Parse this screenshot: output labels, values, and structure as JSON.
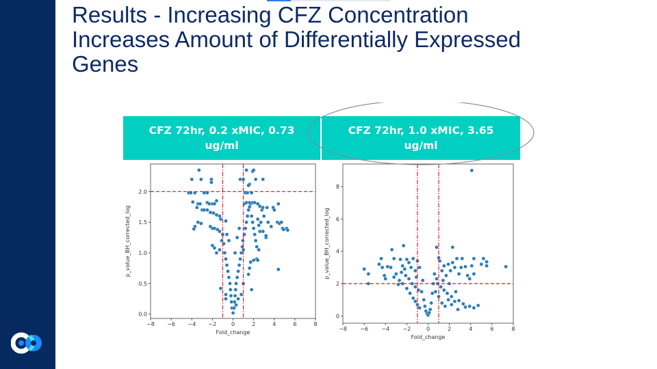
{
  "slide": {
    "title_lines": [
      "Results - Increasing CFZ Concentration",
      "Increases Amount of Differentially Expressed",
      "Genes"
    ],
    "colors": {
      "sidebar": "#062a5f",
      "title": "#0d2a63",
      "header_fill": "#00cfc1",
      "point": "#1f77b4",
      "threshold": "#e8262b"
    },
    "logo": "company-logo-icon"
  },
  "panels": [
    {
      "header_line1": "CFZ 72hr, 0.2 xMIC, 0.73",
      "header_line2": "ug/ml"
    },
    {
      "header_line1": "CFZ 72hr, 1.0 xMIC, 3.65",
      "header_line2": "ug/ml"
    }
  ],
  "chart_data": [
    {
      "type": "scatter",
      "title": "CFZ 72hr, 0.2 xMIC, 0.73 ug/ml",
      "xlabel": "Fold_change",
      "ylabel": "p_value_BH_corrected_log",
      "xlim": [
        -8,
        8
      ],
      "ylim": [
        -0.07,
        2.45
      ],
      "xticks": [
        -8,
        -6,
        -4,
        -2,
        0,
        2,
        4,
        6,
        8
      ],
      "yticks": [
        0.0,
        0.5,
        1.0,
        1.5,
        2.0
      ],
      "ytick_labels": [
        "0.0",
        "0.5",
        "1.0",
        "1.5",
        "2.0"
      ],
      "thresholds": {
        "vertical": [
          -1,
          1
        ],
        "horizontal": 2.0
      },
      "grid": false,
      "points": [
        [
          -3.3,
          2.35
        ],
        [
          -4.0,
          2.2
        ],
        [
          -3.1,
          2.2
        ],
        [
          -2.1,
          2.2
        ],
        [
          -2.1,
          2.15
        ],
        [
          1.3,
          2.35
        ],
        [
          1.9,
          2.33
        ],
        [
          2.0,
          2.35
        ],
        [
          0.7,
          2.2
        ],
        [
          1.0,
          2.2
        ],
        [
          1.6,
          2.12
        ],
        [
          1.5,
          2.1
        ],
        [
          2.2,
          2.2
        ],
        [
          2.9,
          2.2
        ],
        [
          -4.3,
          1.98
        ],
        [
          -4.1,
          1.98
        ],
        [
          -3.7,
          1.98
        ],
        [
          -2.8,
          1.98
        ],
        [
          -2.5,
          1.98
        ],
        [
          -1.6,
          1.85
        ],
        [
          1.2,
          1.98
        ],
        [
          1.4,
          1.98
        ],
        [
          1.8,
          1.98
        ],
        [
          -3.9,
          1.83
        ],
        [
          -3.4,
          1.8
        ],
        [
          -3.2,
          1.8
        ],
        [
          -2.5,
          1.82
        ],
        [
          -2.3,
          1.8
        ],
        [
          -2.0,
          1.8
        ],
        [
          -1.8,
          1.8
        ],
        [
          -3.5,
          1.74
        ],
        [
          -3.0,
          1.7
        ],
        [
          -2.8,
          1.7
        ],
        [
          -2.5,
          1.7
        ],
        [
          -2.2,
          1.66
        ],
        [
          -1.9,
          1.65
        ],
        [
          -1.6,
          1.62
        ],
        [
          -1.3,
          1.6
        ],
        [
          -1.2,
          1.55
        ],
        [
          -3.4,
          1.5
        ],
        [
          -3.7,
          1.43
        ],
        [
          -3.8,
          1.39
        ],
        [
          -3.1,
          1.48
        ],
        [
          -2.2,
          1.43
        ],
        [
          -2.0,
          1.4
        ],
        [
          -1.8,
          1.4
        ],
        [
          -1.5,
          1.38
        ],
        [
          -1.3,
          1.35
        ],
        [
          -1.0,
          1.3
        ],
        [
          -0.7,
          1.52
        ],
        [
          -0.6,
          1.3
        ],
        [
          -2.0,
          1.12
        ],
        [
          -1.8,
          1.08
        ],
        [
          -1.6,
          1.0
        ],
        [
          -1.3,
          1.05
        ],
        [
          -1.1,
          1.2
        ],
        [
          -0.9,
          1.15
        ],
        [
          -0.8,
          1.0
        ],
        [
          -0.7,
          0.9
        ],
        [
          -0.6,
          0.8
        ],
        [
          -0.5,
          0.7
        ],
        [
          -0.4,
          0.6
        ],
        [
          -0.3,
          0.5
        ],
        [
          -0.25,
          0.4
        ],
        [
          -0.2,
          0.3
        ],
        [
          -0.15,
          0.2
        ],
        [
          -0.1,
          0.1
        ],
        [
          0.0,
          0.02
        ],
        [
          0.1,
          0.1
        ],
        [
          0.15,
          0.2
        ],
        [
          0.2,
          0.3
        ],
        [
          0.25,
          0.4
        ],
        [
          -1.2,
          0.42
        ],
        [
          -0.7,
          0.32
        ],
        [
          -0.7,
          0.25
        ],
        [
          0.3,
          0.5
        ],
        [
          0.4,
          0.6
        ],
        [
          0.5,
          0.7
        ],
        [
          0.6,
          0.8
        ],
        [
          0.7,
          0.9
        ],
        [
          0.8,
          1.0
        ],
        [
          0.9,
          1.1
        ],
        [
          0.95,
          1.2
        ],
        [
          0.8,
          0.32
        ],
        [
          0.5,
          0.25
        ],
        [
          0.3,
          0.15
        ],
        [
          1.1,
          1.3
        ],
        [
          1.2,
          1.4
        ],
        [
          1.3,
          1.5
        ],
        [
          1.4,
          1.6
        ],
        [
          1.5,
          1.7
        ],
        [
          1.6,
          1.75
        ],
        [
          1.7,
          1.8
        ],
        [
          1.8,
          1.6
        ],
        [
          1.9,
          1.5
        ],
        [
          2.0,
          1.4
        ],
        [
          2.1,
          1.3
        ],
        [
          2.2,
          1.2
        ],
        [
          2.3,
          1.1
        ],
        [
          2.4,
          1.55
        ],
        [
          2.5,
          1.45
        ],
        [
          2.6,
          1.35
        ],
        [
          1.1,
          1.8
        ],
        [
          1.3,
          1.82
        ],
        [
          1.6,
          1.82
        ],
        [
          1.9,
          1.82
        ],
        [
          2.1,
          1.82
        ],
        [
          2.4,
          1.8
        ],
        [
          2.6,
          1.76
        ],
        [
          2.8,
          1.7
        ],
        [
          3.0,
          1.6
        ],
        [
          3.3,
          1.74
        ],
        [
          2.9,
          1.74
        ],
        [
          2.7,
          1.5
        ],
        [
          2.9,
          1.35
        ],
        [
          3.2,
          1.25
        ],
        [
          3.4,
          1.5
        ],
        [
          3.7,
          1.43
        ],
        [
          3.9,
          1.74
        ],
        [
          4.0,
          1.7
        ],
        [
          4.4,
          1.8
        ],
        [
          4.3,
          1.5
        ],
        [
          4.5,
          1.48
        ],
        [
          4.7,
          1.5
        ],
        [
          4.8,
          1.4
        ],
        [
          4.9,
          1.38
        ],
        [
          5.2,
          1.4
        ],
        [
          5.3,
          1.37
        ],
        [
          3.2,
          1.28
        ],
        [
          2.5,
          1.05
        ],
        [
          2.3,
          0.9
        ],
        [
          2.0,
          0.88
        ],
        [
          1.7,
          0.85
        ],
        [
          1.6,
          0.75
        ],
        [
          1.5,
          0.65
        ],
        [
          2.4,
          0.88
        ],
        [
          4.4,
          0.73
        ],
        [
          1.8,
          0.4
        ],
        [
          1.0,
          0.5
        ],
        [
          -0.4,
          1.2
        ],
        [
          0.2,
          1.0
        ],
        [
          0.4,
          1.25
        ],
        [
          0.6,
          1.4
        ],
        [
          1.0,
          1.05
        ]
      ]
    },
    {
      "type": "scatter",
      "title": "CFZ 72hr, 1.0 xMIC, 3.65 ug/ml",
      "xlabel": "Fold_change",
      "ylabel": "p_value_BH_corrected_log",
      "xlim": [
        -8,
        8
      ],
      "ylim": [
        -0.45,
        9.4
      ],
      "xticks": [
        -8,
        -6,
        -4,
        -2,
        0,
        2,
        4,
        6,
        8
      ],
      "yticks": [
        0,
        2,
        4,
        6,
        8
      ],
      "ytick_labels": [
        "0",
        "2",
        "4",
        "6",
        "8"
      ],
      "thresholds": {
        "vertical": [
          -1,
          1
        ],
        "horizontal": 2.0
      },
      "grid": false,
      "annotation": "ellipse highlighting 1.0 xMIC panel header",
      "points": [
        [
          4.1,
          9.0
        ],
        [
          -2.3,
          4.35
        ],
        [
          -3.4,
          4.1
        ],
        [
          0.8,
          4.25
        ],
        [
          2.3,
          4.25
        ],
        [
          -6.0,
          2.9
        ],
        [
          -5.6,
          2.6
        ],
        [
          -5.6,
          2.0
        ],
        [
          -4.6,
          3.2
        ],
        [
          -4.4,
          3.55
        ],
        [
          -4.3,
          3.0
        ],
        [
          -4.1,
          2.5
        ],
        [
          -4.0,
          2.3
        ],
        [
          -3.8,
          3.05
        ],
        [
          -3.5,
          3.0
        ],
        [
          -3.2,
          3.55
        ],
        [
          -3.0,
          2.6
        ],
        [
          -2.8,
          1.95
        ],
        [
          -2.6,
          3.5
        ],
        [
          -2.4,
          3.1
        ],
        [
          -2.2,
          2.9
        ],
        [
          -2.0,
          3.5
        ],
        [
          -1.8,
          3.3
        ],
        [
          -1.6,
          3.0
        ],
        [
          -1.4,
          3.55
        ],
        [
          -1.2,
          2.8
        ],
        [
          -1.0,
          3.4
        ],
        [
          -0.8,
          3.0
        ],
        [
          -3.2,
          2.4
        ],
        [
          -2.7,
          2.2
        ],
        [
          -2.4,
          2.0
        ],
        [
          -2.0,
          1.7
        ],
        [
          -1.7,
          1.4
        ],
        [
          -1.4,
          1.1
        ],
        [
          -1.2,
          0.9
        ],
        [
          -1.0,
          0.7
        ],
        [
          -0.8,
          0.5
        ],
        [
          -0.6,
          1.5
        ],
        [
          -0.5,
          2.2
        ],
        [
          -0.4,
          1.0
        ],
        [
          -0.3,
          0.6
        ],
        [
          -0.2,
          0.3
        ],
        [
          -0.1,
          0.15
        ],
        [
          0.0,
          0.05
        ],
        [
          0.1,
          0.2
        ],
        [
          0.2,
          0.4
        ],
        [
          0.3,
          0.8
        ],
        [
          0.4,
          1.4
        ],
        [
          0.5,
          2.0
        ],
        [
          0.6,
          2.6
        ],
        [
          0.8,
          2.3
        ],
        [
          1.0,
          3.6
        ],
        [
          1.1,
          3.4
        ],
        [
          1.3,
          2.8
        ],
        [
          1.5,
          3.1
        ],
        [
          1.7,
          2.5
        ],
        [
          1.9,
          3.2
        ],
        [
          2.1,
          2.8
        ],
        [
          2.3,
          3.3
        ],
        [
          2.5,
          3.0
        ],
        [
          2.7,
          3.55
        ],
        [
          2.9,
          2.6
        ],
        [
          3.1,
          3.0
        ],
        [
          3.2,
          3.55
        ],
        [
          3.5,
          3.05
        ],
        [
          3.7,
          2.5
        ],
        [
          3.9,
          2.3
        ],
        [
          4.1,
          3.1
        ],
        [
          4.3,
          3.55
        ],
        [
          4.3,
          2.6
        ],
        [
          5.0,
          3.2
        ],
        [
          5.2,
          3.55
        ],
        [
          5.5,
          3.35
        ],
        [
          5.5,
          3.1
        ],
        [
          7.3,
          3.05
        ],
        [
          1.0,
          1.2
        ],
        [
          1.3,
          0.8
        ],
        [
          1.6,
          0.6
        ],
        [
          1.9,
          1.0
        ],
        [
          2.2,
          0.7
        ],
        [
          2.5,
          0.9
        ],
        [
          2.8,
          0.4
        ],
        [
          2.9,
          0.95
        ],
        [
          3.3,
          0.75
        ],
        [
          3.5,
          0.55
        ],
        [
          3.9,
          0.6
        ],
        [
          4.3,
          0.5
        ],
        [
          4.7,
          0.65
        ],
        [
          -1.8,
          2.3
        ],
        [
          -1.5,
          2.0
        ],
        [
          -1.2,
          1.8
        ],
        [
          -0.9,
          1.6
        ],
        [
          0.7,
          1.5
        ],
        [
          1.2,
          1.8
        ],
        [
          1.5,
          1.6
        ],
        [
          1.8,
          1.4
        ],
        [
          2.2,
          1.2
        ],
        [
          2.6,
          1.5
        ],
        [
          -2.5,
          2.7
        ],
        [
          -1.1,
          2.4
        ],
        [
          0.9,
          2.0
        ],
        [
          1.4,
          2.2
        ],
        [
          2.0,
          2.0
        ],
        [
          -2.1,
          2.5
        ]
      ]
    }
  ]
}
